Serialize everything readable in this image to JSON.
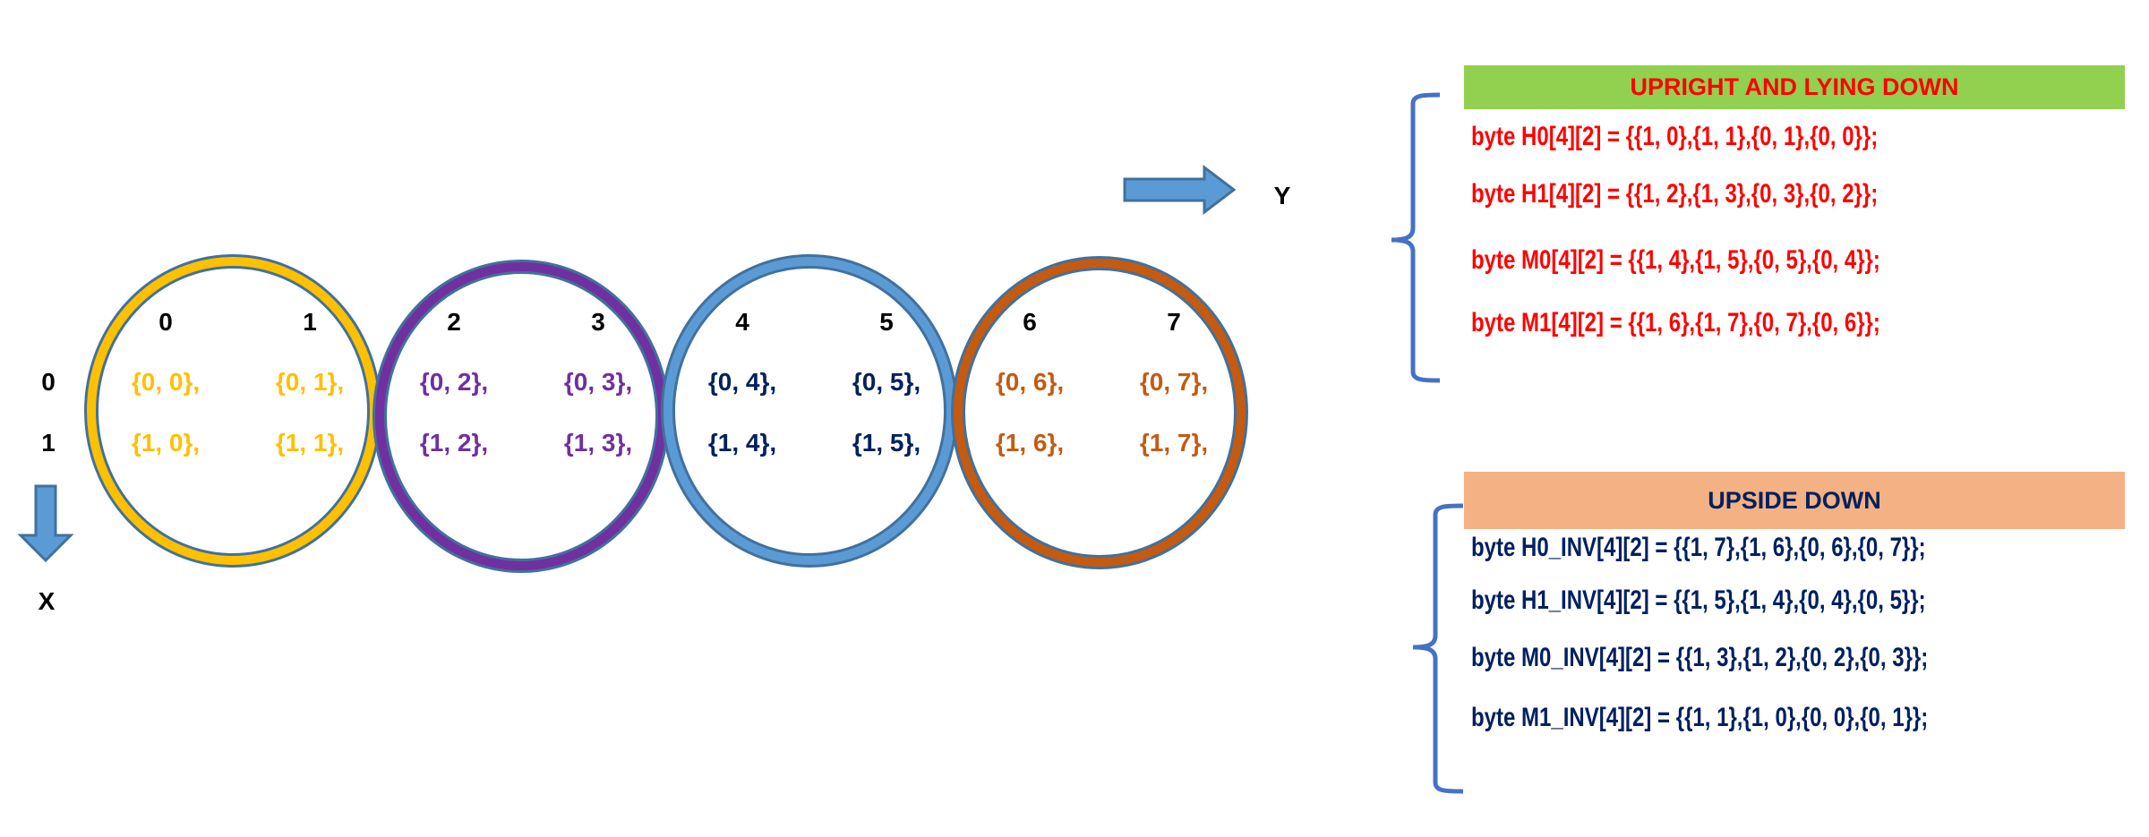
{
  "colors": {
    "outline": "#41719C",
    "arrow": "#5B9BD5",
    "red": "#FF0000",
    "navy": "#002060",
    "green_header": "#92D050",
    "orange_header": "#F4B183",
    "brace": "#4472C4"
  },
  "axes": {
    "x_label": "X",
    "y_label": "Y"
  },
  "grid": {
    "columns": [
      "0",
      "1",
      "2",
      "3",
      "4",
      "5",
      "6",
      "7"
    ],
    "rows": [
      "0",
      "1"
    ],
    "groups": [
      {
        "ring_color": "#FFC000",
        "text_color": "#FFC000",
        "cells": [
          [
            "{0, 0},",
            "{0, 1},"
          ],
          [
            "{1, 0},",
            "{1, 1},"
          ]
        ]
      },
      {
        "ring_color": "#7030A0",
        "text_color": "#7030A0",
        "cells": [
          [
            "{0, 2},",
            "{0, 3},"
          ],
          [
            "{1, 2},",
            "{1, 3},"
          ]
        ]
      },
      {
        "ring_color": "#5B9BD5",
        "text_color": "#002060",
        "cells": [
          [
            "{0, 4},",
            "{0, 5},"
          ],
          [
            "{1, 4},",
            "{1, 5},"
          ]
        ]
      },
      {
        "ring_color": "#C55A11",
        "text_color": "#C55A11",
        "cells": [
          [
            "{0, 6},",
            "{0, 7},"
          ],
          [
            "{1, 6},",
            "{1, 7},"
          ]
        ]
      }
    ]
  },
  "upright": {
    "title": "UPRIGHT AND LYING DOWN",
    "lines": [
      "byte H0[4][2] = {{1, 0},{1, 1},{0, 1},{0, 0}};",
      "byte H1[4][2] = {{1, 2},{1, 3},{0, 3},{0, 2}};",
      "byte M0[4][2] = {{1, 4},{1, 5},{0, 5},{0, 4}};",
      "byte M1[4][2] = {{1, 6},{1, 7},{0, 7},{0, 6}};"
    ]
  },
  "upside": {
    "title": "UPSIDE DOWN",
    "lines": [
      "byte H0_INV[4][2] = {{1, 7},{1, 6},{0, 6},{0, 7}};",
      "byte H1_INV[4][2] = {{1, 5},{1, 4},{0, 4},{0, 5}};",
      "byte M0_INV[4][2] = {{1, 3},{1, 2},{0, 2},{0, 3}};",
      "byte M1_INV[4][2] = {{1, 1},{1, 0},{0, 0},{0, 1}};"
    ]
  }
}
